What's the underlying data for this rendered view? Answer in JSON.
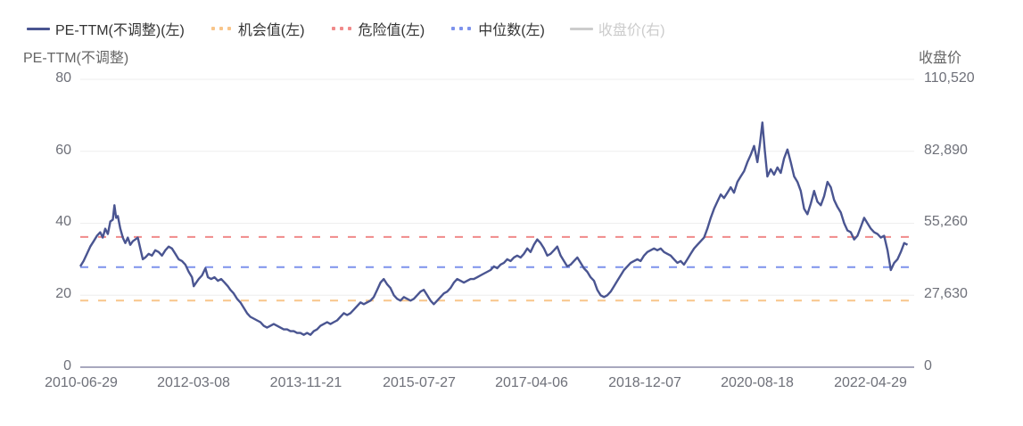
{
  "legend": {
    "items": [
      {
        "label": "PE-TTM(不调整)(左)",
        "style": "solid",
        "color": "#4a5591",
        "enabled": true
      },
      {
        "label": "机会值(左)",
        "style": "dots",
        "color": "#f8c58a",
        "enabled": true
      },
      {
        "label": "危险值(左)",
        "style": "dots",
        "color": "#f08a8a",
        "enabled": true
      },
      {
        "label": "中位数(左)",
        "style": "dots",
        "color": "#7d92ec",
        "enabled": true
      },
      {
        "label": "收盘价(右)",
        "style": "solid",
        "color": "#cccccc",
        "enabled": false
      }
    ]
  },
  "axes": {
    "left_name": "PE-TTM(不调整)",
    "right_name": "收盘价",
    "left_ticks": [
      "80",
      "60",
      "40",
      "20",
      "0"
    ],
    "right_ticks": [
      "110,520",
      "82,890",
      "55,260",
      "27,630",
      "0"
    ],
    "x_ticks": [
      "2010-06-29",
      "2012-03-08",
      "2013-11-21",
      "2015-07-27",
      "2017-04-06",
      "2018-12-07",
      "2020-08-18",
      "2022-04-29"
    ]
  },
  "colors": {
    "pe_line": "#4a5591",
    "opportunity": "#f8c58a",
    "danger": "#f08a8a",
    "median": "#7d92ec",
    "grid": "#eeeeee",
    "axis": "#8c8ca8"
  },
  "chart_data": {
    "type": "line",
    "title": "",
    "xlabel": "",
    "ylabel": "PE-TTM(不调整)",
    "y2label": "收盘价",
    "ylim": [
      0,
      80
    ],
    "y2lim": [
      0,
      110520
    ],
    "x_tick_labels": [
      "2010-06-29",
      "2012-03-08",
      "2013-11-21",
      "2015-07-27",
      "2017-04-06",
      "2018-12-07",
      "2020-08-18",
      "2022-04-29"
    ],
    "legend": [
      "PE-TTM(不调整)(左)",
      "机会值(左)",
      "危险值(左)",
      "中位数(左)",
      "收盘价(右)"
    ],
    "legend_position": "top-left",
    "grid": true,
    "reference_lines": [
      {
        "name": "危险值(左)",
        "value": 36.2
      },
      {
        "name": "中位数(左)",
        "value": 27.8
      },
      {
        "name": "机会值(左)",
        "value": 18.5
      }
    ],
    "series": [
      {
        "name": "PE-TTM(不调整)(左)",
        "x_fraction_and_value": [
          [
            0.0,
            28.0
          ],
          [
            0.004,
            29.5
          ],
          [
            0.008,
            31.5
          ],
          [
            0.012,
            33.5
          ],
          [
            0.016,
            35.0
          ],
          [
            0.02,
            36.5
          ],
          [
            0.024,
            37.5
          ],
          [
            0.027,
            36.0
          ],
          [
            0.03,
            38.5
          ],
          [
            0.033,
            37.0
          ],
          [
            0.036,
            40.5
          ],
          [
            0.039,
            41.0
          ],
          [
            0.041,
            45.0
          ],
          [
            0.043,
            41.5
          ],
          [
            0.045,
            42.0
          ],
          [
            0.048,
            38.5
          ],
          [
            0.051,
            36.0
          ],
          [
            0.054,
            34.5
          ],
          [
            0.057,
            36.0
          ],
          [
            0.06,
            34.0
          ],
          [
            0.063,
            35.0
          ],
          [
            0.066,
            35.5
          ],
          [
            0.069,
            36.0
          ],
          [
            0.072,
            33.0
          ],
          [
            0.075,
            30.0
          ],
          [
            0.078,
            30.5
          ],
          [
            0.082,
            31.5
          ],
          [
            0.086,
            31.0
          ],
          [
            0.09,
            32.5
          ],
          [
            0.094,
            32.0
          ],
          [
            0.098,
            31.0
          ],
          [
            0.102,
            32.5
          ],
          [
            0.106,
            33.5
          ],
          [
            0.11,
            33.0
          ],
          [
            0.114,
            31.5
          ],
          [
            0.118,
            30.0
          ],
          [
            0.122,
            29.5
          ],
          [
            0.126,
            28.5
          ],
          [
            0.13,
            26.5
          ],
          [
            0.134,
            25.0
          ],
          [
            0.136,
            22.5
          ],
          [
            0.139,
            23.5
          ],
          [
            0.142,
            24.5
          ],
          [
            0.146,
            25.5
          ],
          [
            0.15,
            27.5
          ],
          [
            0.153,
            25.0
          ],
          [
            0.157,
            24.5
          ],
          [
            0.161,
            25.0
          ],
          [
            0.165,
            24.0
          ],
          [
            0.169,
            24.5
          ],
          [
            0.173,
            23.5
          ],
          [
            0.177,
            22.5
          ],
          [
            0.18,
            21.5
          ],
          [
            0.184,
            20.5
          ],
          [
            0.188,
            19.0
          ],
          [
            0.192,
            18.0
          ],
          [
            0.196,
            16.5
          ],
          [
            0.2,
            15.0
          ],
          [
            0.204,
            14.0
          ],
          [
            0.208,
            13.5
          ],
          [
            0.212,
            13.0
          ],
          [
            0.216,
            12.5
          ],
          [
            0.22,
            11.5
          ],
          [
            0.224,
            11.0
          ],
          [
            0.228,
            11.5
          ],
          [
            0.232,
            12.0
          ],
          [
            0.236,
            11.5
          ],
          [
            0.24,
            11.0
          ],
          [
            0.244,
            10.5
          ],
          [
            0.248,
            10.5
          ],
          [
            0.252,
            10.0
          ],
          [
            0.256,
            10.0
          ],
          [
            0.26,
            9.5
          ],
          [
            0.264,
            9.5
          ],
          [
            0.268,
            9.0
          ],
          [
            0.272,
            9.5
          ],
          [
            0.276,
            9.0
          ],
          [
            0.28,
            10.0
          ],
          [
            0.284,
            10.5
          ],
          [
            0.288,
            11.5
          ],
          [
            0.292,
            12.0
          ],
          [
            0.296,
            12.5
          ],
          [
            0.3,
            12.0
          ],
          [
            0.304,
            12.5
          ],
          [
            0.308,
            13.0
          ],
          [
            0.312,
            14.0
          ],
          [
            0.316,
            15.0
          ],
          [
            0.32,
            14.5
          ],
          [
            0.324,
            15.0
          ],
          [
            0.328,
            16.0
          ],
          [
            0.332,
            17.0
          ],
          [
            0.336,
            18.0
          ],
          [
            0.34,
            17.5
          ],
          [
            0.344,
            18.0
          ],
          [
            0.348,
            18.5
          ],
          [
            0.352,
            19.5
          ],
          [
            0.356,
            21.5
          ],
          [
            0.36,
            23.5
          ],
          [
            0.364,
            24.5
          ],
          [
            0.368,
            23.0
          ],
          [
            0.372,
            22.0
          ],
          [
            0.376,
            20.0
          ],
          [
            0.38,
            19.0
          ],
          [
            0.384,
            18.5
          ],
          [
            0.388,
            19.5
          ],
          [
            0.392,
            19.0
          ],
          [
            0.396,
            18.5
          ],
          [
            0.4,
            19.0
          ],
          [
            0.404,
            20.0
          ],
          [
            0.408,
            21.0
          ],
          [
            0.412,
            21.5
          ],
          [
            0.416,
            20.0
          ],
          [
            0.42,
            18.5
          ],
          [
            0.424,
            17.5
          ],
          [
            0.428,
            18.5
          ],
          [
            0.432,
            19.5
          ],
          [
            0.436,
            20.5
          ],
          [
            0.44,
            21.0
          ],
          [
            0.444,
            22.0
          ],
          [
            0.448,
            23.5
          ],
          [
            0.452,
            24.5
          ],
          [
            0.456,
            24.0
          ],
          [
            0.46,
            23.5
          ],
          [
            0.464,
            24.0
          ],
          [
            0.468,
            24.5
          ],
          [
            0.472,
            24.5
          ],
          [
            0.476,
            25.0
          ],
          [
            0.48,
            25.5
          ],
          [
            0.484,
            26.0
          ],
          [
            0.488,
            26.5
          ],
          [
            0.492,
            27.0
          ],
          [
            0.496,
            28.0
          ],
          [
            0.5,
            27.5
          ],
          [
            0.504,
            28.5
          ],
          [
            0.508,
            29.0
          ],
          [
            0.512,
            30.0
          ],
          [
            0.516,
            29.5
          ],
          [
            0.52,
            30.5
          ],
          [
            0.524,
            31.0
          ],
          [
            0.528,
            30.5
          ],
          [
            0.532,
            31.5
          ],
          [
            0.536,
            33.0
          ],
          [
            0.54,
            32.0
          ],
          [
            0.544,
            34.0
          ],
          [
            0.548,
            35.5
          ],
          [
            0.552,
            34.5
          ],
          [
            0.556,
            33.0
          ],
          [
            0.56,
            31.0
          ],
          [
            0.564,
            31.5
          ],
          [
            0.568,
            32.5
          ],
          [
            0.572,
            33.5
          ],
          [
            0.576,
            31.0
          ],
          [
            0.58,
            29.5
          ],
          [
            0.584,
            28.0
          ],
          [
            0.588,
            28.5
          ],
          [
            0.592,
            29.5
          ],
          [
            0.596,
            30.5
          ],
          [
            0.6,
            29.0
          ],
          [
            0.604,
            27.5
          ],
          [
            0.608,
            26.5
          ],
          [
            0.612,
            25.0
          ],
          [
            0.616,
            24.0
          ],
          [
            0.62,
            21.5
          ],
          [
            0.624,
            20.0
          ],
          [
            0.628,
            19.5
          ],
          [
            0.632,
            20.0
          ],
          [
            0.636,
            21.0
          ],
          [
            0.64,
            22.5
          ],
          [
            0.644,
            24.0
          ],
          [
            0.648,
            25.5
          ],
          [
            0.652,
            27.0
          ],
          [
            0.656,
            28.0
          ],
          [
            0.66,
            29.0
          ],
          [
            0.664,
            29.5
          ],
          [
            0.668,
            30.0
          ],
          [
            0.672,
            29.5
          ],
          [
            0.676,
            31.0
          ],
          [
            0.68,
            32.0
          ],
          [
            0.684,
            32.5
          ],
          [
            0.688,
            33.0
          ],
          [
            0.692,
            32.5
          ],
          [
            0.696,
            33.0
          ],
          [
            0.7,
            32.0
          ],
          [
            0.704,
            31.5
          ],
          [
            0.708,
            31.0
          ],
          [
            0.712,
            30.0
          ],
          [
            0.716,
            29.0
          ],
          [
            0.72,
            29.5
          ],
          [
            0.724,
            28.5
          ],
          [
            0.728,
            30.0
          ],
          [
            0.732,
            31.5
          ],
          [
            0.736,
            33.0
          ],
          [
            0.74,
            34.0
          ],
          [
            0.744,
            35.0
          ],
          [
            0.748,
            36.0
          ],
          [
            0.752,
            38.5
          ],
          [
            0.756,
            41.5
          ],
          [
            0.76,
            44.0
          ],
          [
            0.764,
            46.0
          ],
          [
            0.768,
            48.0
          ],
          [
            0.772,
            47.0
          ],
          [
            0.776,
            48.5
          ],
          [
            0.78,
            50.0
          ],
          [
            0.784,
            48.5
          ],
          [
            0.788,
            51.5
          ],
          [
            0.792,
            53.0
          ],
          [
            0.796,
            54.5
          ],
          [
            0.8,
            57.0
          ],
          [
            0.804,
            59.0
          ],
          [
            0.808,
            61.5
          ],
          [
            0.812,
            57.0
          ],
          [
            0.815,
            62.0
          ],
          [
            0.818,
            68.0
          ],
          [
            0.821,
            60.0
          ],
          [
            0.824,
            53.0
          ],
          [
            0.828,
            55.0
          ],
          [
            0.832,
            53.5
          ],
          [
            0.836,
            55.5
          ],
          [
            0.84,
            54.0
          ],
          [
            0.844,
            58.0
          ],
          [
            0.848,
            60.5
          ],
          [
            0.852,
            57.0
          ],
          [
            0.856,
            53.0
          ],
          [
            0.86,
            51.5
          ],
          [
            0.864,
            49.0
          ],
          [
            0.868,
            44.0
          ],
          [
            0.872,
            42.5
          ],
          [
            0.876,
            45.5
          ],
          [
            0.88,
            49.0
          ],
          [
            0.884,
            46.0
          ],
          [
            0.888,
            45.0
          ],
          [
            0.892,
            47.5
          ],
          [
            0.896,
            51.5
          ],
          [
            0.9,
            50.0
          ],
          [
            0.904,
            46.5
          ],
          [
            0.908,
            44.5
          ],
          [
            0.912,
            43.0
          ],
          [
            0.916,
            40.0
          ],
          [
            0.92,
            38.0
          ],
          [
            0.924,
            37.5
          ],
          [
            0.928,
            35.5
          ],
          [
            0.932,
            36.5
          ],
          [
            0.936,
            39.0
          ],
          [
            0.94,
            41.5
          ],
          [
            0.944,
            40.0
          ],
          [
            0.948,
            38.5
          ],
          [
            0.952,
            37.5
          ],
          [
            0.956,
            37.0
          ],
          [
            0.96,
            36.0
          ],
          [
            0.964,
            36.5
          ],
          [
            0.968,
            32.5
          ],
          [
            0.972,
            27.0
          ],
          [
            0.976,
            29.0
          ],
          [
            0.98,
            30.0
          ],
          [
            0.984,
            32.0
          ],
          [
            0.988,
            34.5
          ],
          [
            0.992,
            34.0
          ]
        ]
      }
    ]
  }
}
